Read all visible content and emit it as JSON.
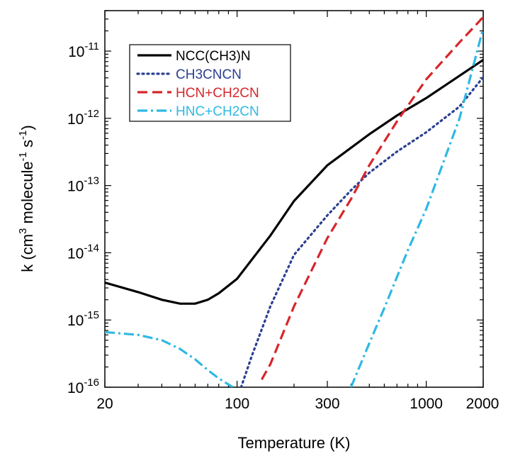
{
  "chart_data": {
    "type": "line",
    "title": "",
    "xlabel": "Temperature (K)",
    "ylabel": "k (cm3 molecule-1 s-1)",
    "ylabel_parts": [
      "k (cm",
      "3",
      " molecule",
      "-1",
      " s",
      "-1",
      ")"
    ],
    "x_scale": "log",
    "y_scale": "log",
    "xlim": [
      20,
      2000
    ],
    "ylim": [
      1e-16,
      4e-11
    ],
    "x_ticks": [
      {
        "value": 20,
        "label": "20"
      },
      {
        "value": 100,
        "label": "100"
      },
      {
        "value": 300,
        "label": "300"
      },
      {
        "value": 1000,
        "label": "1000"
      },
      {
        "value": 2000,
        "label": "2000"
      }
    ],
    "y_ticks": [
      {
        "value": 1e-16,
        "base": "10",
        "exp": "-16"
      },
      {
        "value": 1e-15,
        "base": "10",
        "exp": "-15"
      },
      {
        "value": 1e-14,
        "base": "10",
        "exp": "-14"
      },
      {
        "value": 1e-13,
        "base": "10",
        "exp": "-13"
      },
      {
        "value": 1e-12,
        "base": "10",
        "exp": "-12"
      },
      {
        "value": 1e-11,
        "base": "10",
        "exp": "-11"
      }
    ],
    "grid": false,
    "legend_position": "top-left",
    "series": [
      {
        "name": "NCC(CH3)N",
        "color": "#000000",
        "dash": "solid",
        "x": [
          20,
          30,
          40,
          50,
          60,
          70,
          80,
          100,
          150,
          200,
          300,
          500,
          700,
          1000,
          1500,
          2000
        ],
        "y": [
          3.6e-15,
          2.6e-15,
          2e-15,
          1.75e-15,
          1.75e-15,
          2e-15,
          2.5e-15,
          4.1e-15,
          1.8e-14,
          5.9e-14,
          2e-13,
          5.8e-13,
          1.1e-12,
          2e-12,
          4.3e-12,
          7.4e-12
        ]
      },
      {
        "name": "CH3CNCN",
        "color": "#2b3f91",
        "dash": "dot",
        "x": [
          105,
          120,
          150,
          200,
          300,
          400,
          500,
          700,
          1000,
          1500,
          2000
        ],
        "y": [
          1e-16,
          3e-16,
          1.6e-15,
          9.3e-15,
          3.6e-14,
          8.5e-14,
          1.55e-13,
          3.2e-13,
          6.2e-13,
          1.5e-12,
          4.1e-12
        ]
      },
      {
        "name": "HCN+CH2CN",
        "color": "#d7262b",
        "dash": "dash",
        "x": [
          135,
          150,
          200,
          300,
          400,
          500,
          700,
          1000,
          1500,
          2000
        ],
        "y": [
          1.3e-16,
          2.2e-16,
          1.6e-15,
          1.65e-14,
          6.3e-14,
          2e-13,
          9e-13,
          3.8e-12,
          1.35e-11,
          3.2e-11
        ]
      },
      {
        "name": "HNC+CH2CN",
        "color": "#2fb8e3",
        "dash": "dashdot",
        "x": [
          20,
          30,
          40,
          50,
          60,
          70,
          80,
          95,
          400,
          500,
          600,
          800,
          1000,
          1500,
          2000
        ],
        "y": [
          6.6e-16,
          6e-16,
          5e-16,
          3.7e-16,
          2.6e-16,
          1.8e-16,
          1.35e-16,
          1e-16,
          1e-16,
          4.5e-16,
          1.5e-15,
          1.1e-14,
          4.5e-14,
          1e-12,
          2.2e-11
        ]
      }
    ]
  }
}
